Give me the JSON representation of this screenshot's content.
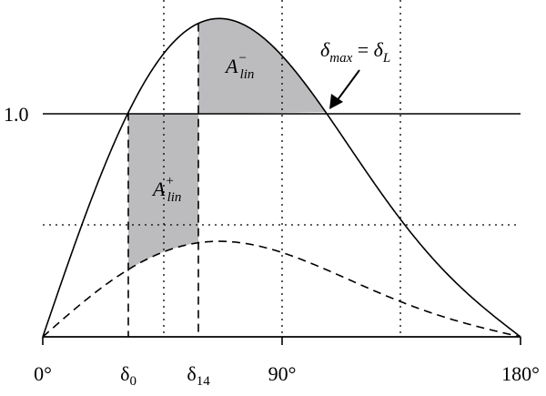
{
  "y_axis_label": "1.0",
  "x_labels": {
    "zero": "0°",
    "delta0": {
      "base": "δ",
      "sub": "0"
    },
    "delta14": {
      "base": "δ",
      "sub": "14"
    },
    "ninety": "90°",
    "one_eighty": "180°"
  },
  "areas": {
    "decel": {
      "base": "A",
      "sub": "lin",
      "sup": "−"
    },
    "accel": {
      "base": "A",
      "sub": "lin",
      "sup": "+"
    }
  },
  "annotation": {
    "lhs": "δ",
    "lhs_sub": "max",
    "eq": " = ",
    "rhs": "δ",
    "rhs_sub": "L"
  }
}
